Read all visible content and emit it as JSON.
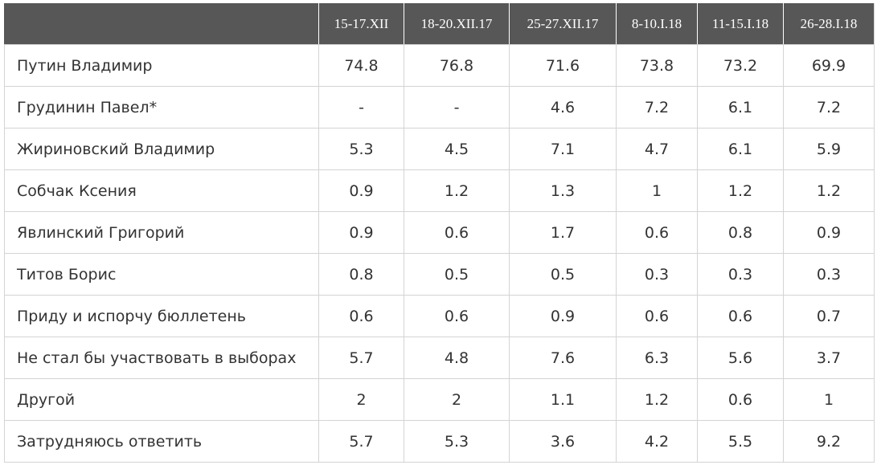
{
  "table": {
    "columns": [
      "",
      "15-17.XII",
      "18-20.XII.17",
      "25-27.XII.17",
      "8-10.I.18",
      "11-15.I.18",
      "26-28.I.18"
    ],
    "rows": [
      {
        "name": "Путин Владимир",
        "values": [
          "74.8",
          "76.8",
          "71.6",
          "73.8",
          "73.2",
          "69.9"
        ]
      },
      {
        "name": "Грудинин Павел*",
        "values": [
          "-",
          "-",
          "4.6",
          "7.2",
          "6.1",
          "7.2"
        ]
      },
      {
        "name": "Жириновский Владимир",
        "values": [
          "5.3",
          "4.5",
          "7.1",
          "4.7",
          "6.1",
          "5.9"
        ]
      },
      {
        "name": "Собчак Ксения",
        "values": [
          "0.9",
          "1.2",
          "1.3",
          "1",
          "1.2",
          "1.2"
        ]
      },
      {
        "name": "Явлинский Григорий",
        "values": [
          "0.9",
          "0.6",
          "1.7",
          "0.6",
          "0.8",
          "0.9"
        ]
      },
      {
        "name": "Титов Борис",
        "values": [
          "0.8",
          "0.5",
          "0.5",
          "0.3",
          "0.3",
          "0.3"
        ]
      },
      {
        "name": "Приду и испорчу бюллетень",
        "values": [
          "0.6",
          "0.6",
          "0.9",
          "0.6",
          "0.6",
          "0.7"
        ]
      },
      {
        "name": "Не стал бы участвовать в выборах",
        "values": [
          "5.7",
          "4.8",
          "7.6",
          "6.3",
          "5.6",
          "3.7"
        ]
      },
      {
        "name": "Другой",
        "values": [
          "2",
          "2",
          "1.1",
          "1.2",
          "0.6",
          "1"
        ]
      },
      {
        "name": "Затрудняюсь ответить",
        "values": [
          "5.7",
          "5.3",
          "3.6",
          "4.2",
          "5.5",
          "9.2"
        ]
      }
    ]
  },
  "colors": {
    "header_bg": "#575757",
    "header_text": "#ffffff",
    "grid": "#d4d4d4",
    "body_text": "#333333"
  }
}
